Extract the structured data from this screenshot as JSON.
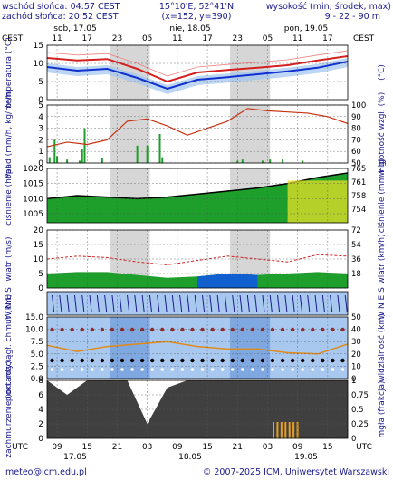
{
  "header": {
    "sunrise": "wschód słońca: 04:57 CEST",
    "sunset": "zachód słońca: 20:52 CEST",
    "coords": "15°10'E, 52°41'N",
    "grid": "(x=152, y=390)",
    "height_label": "wysokość (min, środek, max)",
    "height_value": "9 - 22 - 90 m"
  },
  "top_axis": {
    "tz_left": "CEST",
    "tz_right": "CEST",
    "days": [
      "sob, 17.05",
      "nie, 18.05",
      "pon, 19.05"
    ],
    "hours": [
      "11",
      "17",
      "23",
      "05",
      "11",
      "17",
      "23",
      "05",
      "11",
      "17"
    ]
  },
  "bottom_axis": {
    "tz_left": "UTC",
    "tz_right": "UTC",
    "hours": [
      "09",
      "15",
      "21",
      "03",
      "09",
      "15",
      "21",
      "03",
      "09",
      "15"
    ],
    "days": [
      "17.05",
      "18.05",
      "19.05"
    ]
  },
  "footer": {
    "left": "meteo@icm.edu.pl",
    "right": "© 2007-2025 ICM, Uniwersytet Warszawski"
  },
  "colors": {
    "label": "#1a1a8c",
    "night": "#d6d6d6",
    "temp": "#d32020",
    "dew": "#1030d0",
    "pressure_green": "#1e9e2a",
    "humidity": "#c83010",
    "wind_blue": "#1060d0",
    "cloud_dark": "#404040",
    "vis": "#e08a1a"
  },
  "chart_data": [
    {
      "type": "line",
      "name": "temperature",
      "ylabel": "temperatura (°C)",
      "ylabel_r": "(°C)",
      "ylim": [
        0,
        15
      ],
      "yticks": [
        0,
        5,
        10,
        15
      ],
      "x": [
        0,
        6,
        12,
        18,
        24,
        30,
        36,
        42,
        48,
        54,
        60
      ],
      "series": [
        {
          "values": [
            11.5,
            10.8,
            11.2,
            8.5,
            5.0,
            7.5,
            8.2,
            8.8,
            9.5,
            10.8,
            12.0
          ]
        },
        {
          "values": [
            9.0,
            8.0,
            8.5,
            6.0,
            3.0,
            5.5,
            6.2,
            7.0,
            7.8,
            8.8,
            10.5
          ]
        }
      ]
    },
    {
      "type": "bar",
      "name": "precipitation_humidity",
      "ylabel": "opad (mm/h, kg/m²/h)",
      "ylabel_r": "wilgotność wzgl. (%)",
      "ylim": [
        0,
        5
      ],
      "yticks": [
        0,
        1,
        2,
        3,
        4,
        5
      ],
      "ylim_r": [
        50,
        100
      ],
      "yticks_r": [
        50,
        60,
        70,
        80,
        90,
        100
      ],
      "humidity_x": [
        0,
        4,
        8,
        12,
        16,
        20,
        24,
        28,
        32,
        36,
        40,
        44,
        48,
        52,
        56,
        60
      ],
      "humidity": [
        64,
        68,
        66,
        70,
        86,
        88,
        82,
        74,
        80,
        86,
        97,
        95,
        94,
        93,
        90,
        84
      ],
      "precip_x": [
        0.5,
        1.5,
        2,
        4,
        6.5,
        7,
        7.5,
        11,
        18,
        20,
        22.5,
        23,
        38,
        39,
        43,
        44.5,
        47,
        51
      ],
      "precip": [
        0.5,
        2.0,
        0.6,
        0.3,
        0.2,
        1.2,
        3.0,
        0.4,
        1.5,
        1.5,
        2.5,
        0.5,
        0.2,
        0.3,
        0.2,
        0.3,
        0.3,
        0.2
      ]
    },
    {
      "type": "area",
      "name": "pressure",
      "ylabel": "ciśnienie (hPa)",
      "ylabel_r": "ciśnienie (mm Hg)",
      "ylim": [
        1002,
        1020
      ],
      "yticks": [
        1005,
        1010,
        1015,
        1020
      ],
      "yticks_r": [
        "754",
        "758",
        "761",
        "765"
      ],
      "x": [
        0,
        6,
        12,
        18,
        24,
        30,
        36,
        42,
        48,
        54,
        60
      ],
      "values": [
        1010.0,
        1011.0,
        1010.5,
        1010.0,
        1010.5,
        1011.5,
        1012.5,
        1013.5,
        1015.0,
        1017.0,
        1018.5
      ]
    },
    {
      "type": "line",
      "name": "wind",
      "ylabel": "wiatr (m/s)",
      "ylabel_r": "wiatr (km/h)",
      "ylim": [
        0,
        20
      ],
      "yticks": [
        0,
        5,
        10,
        15,
        20
      ],
      "yticks_r": [
        "18",
        "36",
        "54",
        "72"
      ],
      "x": [
        0,
        6,
        12,
        18,
        24,
        30,
        36,
        42,
        48,
        54,
        60
      ],
      "mean": [
        5.0,
        5.5,
        5.5,
        4.5,
        3.5,
        4.0,
        5.0,
        4.5,
        5.0,
        5.5,
        5.0
      ],
      "gusts": [
        10.0,
        11.0,
        10.5,
        9.0,
        8.0,
        9.5,
        11.0,
        10.0,
        9.0,
        11.5,
        11.0
      ]
    },
    {
      "type": "scatter",
      "name": "wind_direction",
      "ylabel": "W N E S",
      "ylabel_r": "W N E S"
    },
    {
      "type": "scatter",
      "name": "clouds_visibility",
      "ylabel": "pion. rozciągł. chmur (km)",
      "ylabel_r": "widzialność (km)",
      "ylim": [
        0,
        15
      ],
      "yticks": [
        "0.0",
        "2.5",
        "5.0",
        "7.5",
        "10.0",
        "15.0"
      ],
      "yticks_r": [
        0,
        10,
        20,
        30,
        40,
        50
      ],
      "vis_x": [
        0,
        6,
        12,
        18,
        24,
        30,
        36,
        42,
        48,
        54,
        60
      ],
      "vis": [
        27,
        22,
        26,
        28,
        30,
        26,
        24,
        24,
        21,
        20,
        28
      ]
    },
    {
      "type": "area",
      "name": "cloud_cover_fog",
      "ylabel": "zachmurzenie (oktanty)",
      "ylabel_r": "mgła (frakcja)",
      "ylim": [
        0,
        8
      ],
      "yticks": [
        0,
        2,
        4,
        6,
        8
      ],
      "yticks_r": [
        "0",
        "0.25",
        "0.5",
        "0.75",
        "1"
      ],
      "x": [
        0,
        4,
        8,
        12,
        16,
        20,
        24,
        28,
        32,
        36,
        40,
        44,
        48,
        52,
        56,
        60
      ],
      "cover": [
        8,
        6,
        8,
        8,
        8,
        2,
        7,
        8,
        8,
        8,
        8,
        8,
        8,
        8,
        8,
        8
      ]
    }
  ]
}
